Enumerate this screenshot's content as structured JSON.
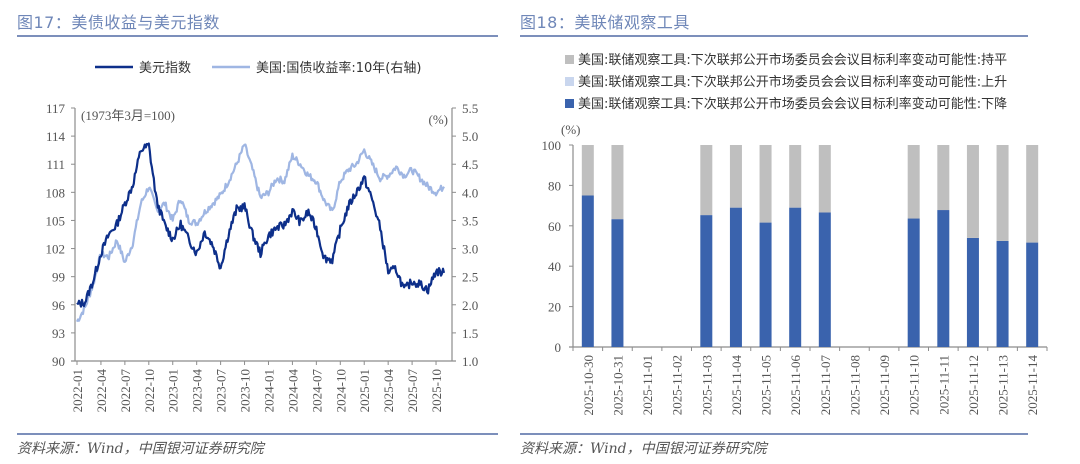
{
  "panels": {
    "left": {
      "title": "图17：美债收益与美元指数",
      "source": "资料来源：Wind，中国银河证券研究院",
      "legend": [
        "美元指数",
        "美国:国债收益率:10年(右轴)"
      ]
    },
    "right": {
      "title": "图18：美联储观察工具",
      "source": "资料来源：Wind，中国银河证券研究院",
      "legend": [
        "美国:联储观察工具:下次联邦公开市场委员会会议目标利率变动可能性:持平",
        "美国:联储观察工具:下次联邦公开市场委员会会议目标利率变动可能性:上升",
        "美国:联储观察工具:下次联邦公开市场委员会会议目标利率变动可能性:下降"
      ]
    }
  },
  "chart_data": [
    {
      "type": "line",
      "title": "图17：美债收益与美元指数",
      "annotation_left": "(1973年3月=100)",
      "annotation_right": "(%)",
      "x_tick_labels": [
        "2022-01",
        "2022-04",
        "2022-07",
        "2022-10",
        "2023-01",
        "2023-04",
        "2023-07",
        "2023-10",
        "2024-01",
        "2024-04",
        "2024-07",
        "2024-10",
        "2025-01",
        "2025-04",
        "2025-07",
        "2025-10"
      ],
      "ylim_left": [
        90,
        117
      ],
      "yticks_left": [
        90,
        93,
        96,
        99,
        102,
        105,
        108,
        111,
        114,
        117
      ],
      "ylim_right": [
        1.0,
        5.5
      ],
      "yticks_right": [
        "1.0",
        "1.5",
        "2.0",
        "2.5",
        "3.0",
        "3.5",
        "4.0",
        "4.5",
        "5.0",
        "5.5"
      ],
      "x_range": [
        "2022-01",
        "2025-11"
      ],
      "colors": {
        "dxy": "#0d2f8a",
        "yield": "#9fb6e3"
      },
      "series": [
        {
          "name": "美元指数",
          "axis": "left",
          "x": [
            "2022-01",
            "2022-02",
            "2022-03",
            "2022-04",
            "2022-05",
            "2022-06",
            "2022-07",
            "2022-08",
            "2022-09",
            "2022-10",
            "2022-11",
            "2022-12",
            "2023-01",
            "2023-02",
            "2023-03",
            "2023-04",
            "2023-05",
            "2023-06",
            "2023-07",
            "2023-08",
            "2023-09",
            "2023-10",
            "2023-11",
            "2023-12",
            "2024-01",
            "2024-02",
            "2024-03",
            "2024-04",
            "2024-05",
            "2024-06",
            "2024-07",
            "2024-08",
            "2024-09",
            "2024-10",
            "2024-11",
            "2024-12",
            "2025-01",
            "2025-02",
            "2025-03",
            "2025-04",
            "2025-05",
            "2025-06",
            "2025-07",
            "2025-08",
            "2025-09",
            "2025-10",
            "2025-11"
          ],
          "values": [
            96.0,
            96.3,
            98.5,
            101.5,
            103.5,
            104.6,
            106.8,
            108.8,
            112.5,
            113.0,
            107.0,
            104.5,
            103.0,
            104.6,
            103.0,
            101.5,
            103.8,
            102.4,
            100.0,
            103.6,
            106.2,
            106.5,
            103.5,
            101.5,
            103.4,
            104.2,
            104.5,
            106.0,
            104.8,
            105.9,
            104.1,
            101.0,
            100.8,
            104.0,
            106.5,
            108.0,
            109.5,
            107.2,
            104.2,
            99.5,
            99.8,
            97.6,
            98.5,
            98.2,
            97.6,
            99.6,
            99.4
          ]
        },
        {
          "name": "美国:国债收益率:10年(右轴)",
          "axis": "right",
          "x": [
            "2022-01",
            "2022-02",
            "2022-03",
            "2022-04",
            "2022-05",
            "2022-06",
            "2022-07",
            "2022-08",
            "2022-09",
            "2022-10",
            "2022-11",
            "2022-12",
            "2023-01",
            "2023-02",
            "2023-03",
            "2023-04",
            "2023-05",
            "2023-06",
            "2023-07",
            "2023-08",
            "2023-09",
            "2023-10",
            "2023-11",
            "2023-12",
            "2024-01",
            "2024-02",
            "2024-03",
            "2024-04",
            "2024-05",
            "2024-06",
            "2024-07",
            "2024-08",
            "2024-09",
            "2024-10",
            "2024-11",
            "2024-12",
            "2025-01",
            "2025-02",
            "2025-03",
            "2025-04",
            "2025-05",
            "2025-06",
            "2025-07",
            "2025-08",
            "2025-09",
            "2025-10",
            "2025-11"
          ],
          "values": [
            1.7,
            1.95,
            2.35,
            2.9,
            2.85,
            3.15,
            2.75,
            3.1,
            3.8,
            4.1,
            3.7,
            3.8,
            3.5,
            3.9,
            3.5,
            3.45,
            3.65,
            3.8,
            3.95,
            4.2,
            4.5,
            4.85,
            4.4,
            3.9,
            4.0,
            4.25,
            4.2,
            4.65,
            4.5,
            4.3,
            4.2,
            3.85,
            3.65,
            4.2,
            4.4,
            4.5,
            4.75,
            4.5,
            4.25,
            4.3,
            4.45,
            4.3,
            4.4,
            4.25,
            4.1,
            4.0,
            4.1
          ]
        }
      ]
    },
    {
      "type": "bar",
      "stacked": true,
      "title": "图18：美联储观察工具",
      "ylabel": "(%)",
      "ylim": [
        0,
        100
      ],
      "yticks": [
        0,
        20,
        40,
        60,
        80,
        100
      ],
      "categories": [
        "2025-10-30",
        "2025-10-31",
        "2025-11-01",
        "2025-11-02",
        "2025-11-03",
        "2025-11-04",
        "2025-11-05",
        "2025-11-06",
        "2025-11-07",
        "2025-11-08",
        "2025-11-09",
        "2025-11-10",
        "2025-11-11",
        "2025-11-12",
        "2025-11-13",
        "2025-11-14"
      ],
      "series": [
        {
          "name": "下降",
          "color": "#3a63ad",
          "values": [
            75.0,
            63.3,
            null,
            null,
            65.3,
            69.0,
            61.6,
            69.0,
            66.6,
            null,
            null,
            63.6,
            67.8,
            54.0,
            52.5,
            51.7
          ]
        },
        {
          "name": "上升",
          "color": "#c9d6ee",
          "values": [
            0,
            0,
            null,
            null,
            0,
            0,
            0,
            0,
            0,
            null,
            null,
            0,
            0,
            0,
            0,
            0
          ]
        },
        {
          "name": "持平",
          "color": "#bfbfbf",
          "values": [
            25.0,
            36.7,
            null,
            null,
            34.7,
            31.0,
            38.4,
            31.0,
            33.4,
            null,
            null,
            36.4,
            32.2,
            46.0,
            47.5,
            48.3
          ]
        }
      ],
      "legend_placement": "top-left"
    }
  ]
}
